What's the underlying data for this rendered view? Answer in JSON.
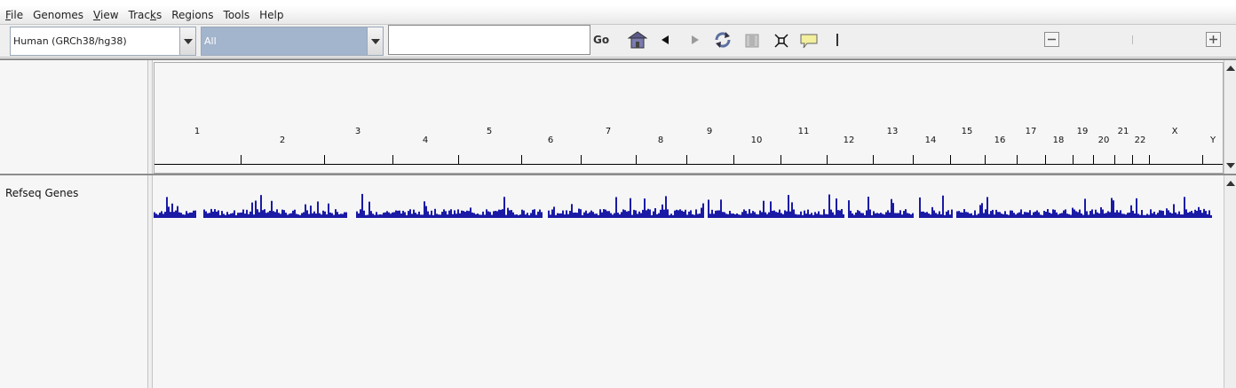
{
  "menu": [
    {
      "label": "File",
      "mnemonic_index": 0
    },
    {
      "label": "Genomes",
      "mnemonic_index": -1
    },
    {
      "label": "View",
      "mnemonic_index": 0
    },
    {
      "label": "Tracks",
      "mnemonic_index": 4
    },
    {
      "label": "Regions",
      "mnemonic_index": -1
    },
    {
      "label": "Tools",
      "mnemonic_index": -1
    },
    {
      "label": "Help",
      "mnemonic_index": -1
    }
  ],
  "toolbar": {
    "genome_value": "Human (GRCh38/hg38)",
    "chromosome_value": "All",
    "locus_value": "",
    "go_label": "Go",
    "icons": [
      "home-icon",
      "back-arrow-icon",
      "forward-arrow-icon",
      "refresh-icon",
      "region-of-interest-icon",
      "fit-to-window-icon",
      "popup-info-icon",
      "zoom-out-icon",
      "zoom-in-icon"
    ]
  },
  "ruler": {
    "chromosomes": [
      "1",
      "2",
      "3",
      "4",
      "5",
      "6",
      "7",
      "8",
      "9",
      "10",
      "11",
      "12",
      "13",
      "14",
      "15",
      "16",
      "17",
      "18",
      "19",
      "20",
      "21",
      "22",
      "X",
      "Y"
    ]
  },
  "tracks": [
    {
      "name": "Refseq Genes",
      "color": "#1a1aa6"
    }
  ],
  "colors": {
    "chromosome_combo_bg": "#a3b5cc",
    "gene_track": "#1a1aa6"
  }
}
